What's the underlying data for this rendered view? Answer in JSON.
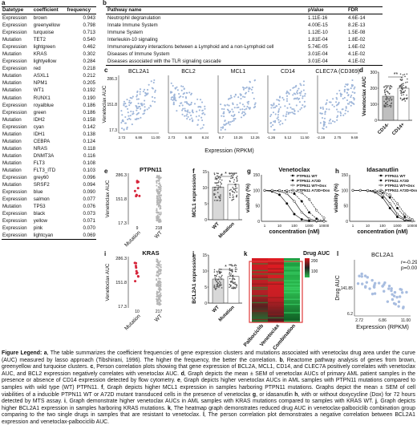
{
  "panel_a": {
    "label": "a",
    "headers": [
      "Datetype",
      "coefficient",
      "frequency"
    ],
    "rows": [
      [
        "Expression",
        "brown",
        "0.943"
      ],
      [
        "Expression",
        "greenyellow",
        "0.798"
      ],
      [
        "Expression",
        "turquoise",
        "0.713"
      ],
      [
        "Mutation",
        "TET2",
        "0.540"
      ],
      [
        "Expression",
        "lightgreen",
        "0.462"
      ],
      [
        "Mutation",
        "KRAS",
        "0.302"
      ],
      [
        "Expression",
        "lightyellow",
        "0.284"
      ],
      [
        "Expression",
        "red",
        "0.218"
      ],
      [
        "Mutation",
        "ASXL1",
        "0.212"
      ],
      [
        "Mutation",
        "NPM1",
        "0.205"
      ],
      [
        "Mutation",
        "WT1",
        "0.192"
      ],
      [
        "Mutation",
        "RUNX1",
        "0.190"
      ],
      [
        "Expression",
        "royalblue",
        "0.186"
      ],
      [
        "Expression",
        "green",
        "0.186"
      ],
      [
        "Mutation",
        "IDH2",
        "0.158"
      ],
      [
        "Expression",
        "cyan",
        "0.142"
      ],
      [
        "Mutation",
        "IDH1",
        "0.138"
      ],
      [
        "Mutation",
        "CEBPA",
        "0.124"
      ],
      [
        "Mutation",
        "NRAS",
        "0.118"
      ],
      [
        "Mutation",
        "DNMT3A",
        "0.116"
      ],
      [
        "Mutation",
        "FLT3",
        "0.108"
      ],
      [
        "Mutation",
        "FLT3_ITD",
        "0.103"
      ],
      [
        "Expression",
        "grey60",
        "0.096"
      ],
      [
        "Mutation",
        "SRSF2",
        "0.094"
      ],
      [
        "Expression",
        "blue",
        "0.090"
      ],
      [
        "Expression",
        "salmon",
        "0.077"
      ],
      [
        "Mutation",
        "TP53",
        "0.076"
      ],
      [
        "Expression",
        "black",
        "0.073"
      ],
      [
        "Expression",
        "yellow",
        "0.071"
      ],
      [
        "Expression",
        "pink",
        "0.070"
      ],
      [
        "Expression",
        "lightcyan",
        "0.069"
      ]
    ]
  },
  "panel_b": {
    "label": "b",
    "headers": [
      "Pathway name",
      "pValue",
      "FDR"
    ],
    "rows": [
      [
        "Neutrophil degranulation",
        "1.11E-16",
        "4.6E-14"
      ],
      [
        "Innate Immune System",
        "4.00E-15",
        "8.2E-13"
      ],
      [
        "Immune System",
        "1.12E-10",
        "1.5E-08"
      ],
      [
        "Interleukin-10 signaling",
        "1.81E-04",
        "1.8E-02"
      ],
      [
        "Immunoregulatory interactions between a Lymphoid and a non-Lymphoid cell",
        "5.74E-05",
        "1.6E-02"
      ],
      [
        "Diseases of Immune System",
        "3.01E-04",
        "4.1E-02"
      ],
      [
        "Diseases associated with the TLR signaling cascade",
        "3.01E-04",
        "4.1E-02"
      ]
    ]
  },
  "panel_c": {
    "label": "c",
    "ylabel": "Venetoclax AUC",
    "xlabel": "Expression (RPKM)",
    "yticks": [
      "286.3",
      "151.8",
      "17.3"
    ],
    "plots": [
      {
        "title": "BCL2A1",
        "xticks": [
          "2.72",
          "6.86",
          "11.00"
        ]
      },
      {
        "title": "BCL2",
        "xticks": [
          "2.73",
          "5.48",
          "8.24"
        ]
      },
      {
        "title": "MCL1",
        "xticks": [
          "8.7",
          "10.26",
          "12.26"
        ]
      },
      {
        "title": "CD14",
        "xticks": [
          "-1.26",
          "5.12",
          "11.50"
        ]
      },
      {
        "title": "CLEC7A (CD369)",
        "xticks": [
          "-2.19",
          "2.75",
          "9.69"
        ]
      }
    ]
  },
  "panel_d": {
    "label": "d",
    "ylabel": "Venetoclax AUC",
    "yticks": [
      "300",
      "200",
      "100",
      "0"
    ],
    "categories": [
      "CD14-",
      "CD14+"
    ],
    "sig": "**"
  },
  "panel_e": {
    "label": "e",
    "title": "PTPN11",
    "ylabel": "Venetoclax AUC",
    "yticks": [
      "286.3",
      "151.8",
      "17.3"
    ],
    "categories": [
      "Mutation",
      "WT"
    ],
    "counts": [
      "9",
      "218"
    ]
  },
  "panel_f": {
    "label": "f",
    "ylabel": "MCL1 expression",
    "yticks": [
      "15",
      "10",
      "5",
      "0"
    ],
    "categories": [
      "WT",
      "Mutation"
    ],
    "sig": "*"
  },
  "panel_g": {
    "label": "g",
    "title": "Venetoclax",
    "ylabel": "viability (%)",
    "xlabel": "concentration (nM)",
    "yticks": [
      "150",
      "100",
      "50",
      "0"
    ],
    "xticks": [
      "1",
      "10",
      "100",
      "1000",
      "10000"
    ],
    "legend": [
      "PTPN11 WT",
      "PTPN11 A72D",
      "PTPN11 WT+Dox",
      "PTPN11 A72D+Dox"
    ]
  },
  "panel_h": {
    "label": "h",
    "title": "Idasanutlin",
    "ylabel": "viability (%)",
    "xlabel": "concentration (nM)",
    "yticks": [
      "150",
      "100",
      "50",
      "0"
    ],
    "xticks": [
      "1",
      "10",
      "100",
      "1000",
      "10000"
    ],
    "legend": [
      "PTPN11 WT",
      "PTPN11 A72D",
      "PTPN11 WT+Dox",
      "PTPN11 A72D+Dox"
    ]
  },
  "panel_i": {
    "label": "i",
    "title": "KRAS",
    "ylabel": "Venetoclax AUC",
    "yticks": [
      "286.3",
      "151.8",
      "17.3"
    ],
    "categories": [
      "Mutation",
      "WT"
    ],
    "counts": [
      "10",
      "217"
    ]
  },
  "panel_j": {
    "label": "j",
    "ylabel": "BCL2A1 expression",
    "yticks": [
      "15",
      "10",
      "5",
      "0"
    ],
    "categories": [
      "WT",
      "Mutation"
    ],
    "sig": "*"
  },
  "panel_k": {
    "label": "k",
    "legend_title": "Drug AUC",
    "legend_ticks": [
      "200",
      "100"
    ],
    "columns": [
      "Palbociclib",
      "Venetoclax",
      "Combination"
    ]
  },
  "panel_l": {
    "label": "l",
    "title": "BCL2A1",
    "ylabel": "Drug AUC",
    "xlabel": "Expression (RPKM)",
    "yticks": [
      "141.85",
      "6.2"
    ],
    "xticks": [
      "2.72",
      "6.86",
      "11.00"
    ],
    "r": "r=-0.29",
    "p": "p=0.003"
  },
  "legend": {
    "title": "Figure Legend:",
    "parts": [
      {
        "b": "a",
        "t": ", The table summarizes the coefficient frequencies of gene expression clusters and mutations associated with venetoclax drug area under the curve (AUC) measured by lasso approach (Tibshirani, 1996). The higher the frequency, the better the correlation. "
      },
      {
        "b": "b",
        "t": ", Reactome pathway analysis of genes from brown, greenyellow and turquoise clusters. "
      },
      {
        "b": "c",
        "t": ", Person correlation plots showing that gene expression of BCL2A, MCL1, CD14, and CLEC7A positively correlates with venetoclax AUC, and BCL2 expression negatively correlates with venetoclax AUC. "
      },
      {
        "b": "d",
        "t": ", Graph depicts the mean ± SEM of venetoclax AUCs of primary AML patient samples in the presence or absence of CD14 expression detected by flow cytometry. "
      },
      {
        "b": "e",
        "t": ", Graph depicts higher venetoclax AUCs in AML samples with PTPN11 mutations compared to samples with wild type (WT) PTPN11. "
      },
      {
        "b": "f",
        "t": ", Graph depicts higher MCL1 expression in samples harboring PTPN11 mutations. Graphs depict the mean ± SEM of cell viabilities of a inducible PTPN11 WT or A72D mutant transduced cells in the presence of venetoclax "
      },
      {
        "b": "g",
        "t": ", or idasanutlin "
      },
      {
        "b": "h",
        "t": ", with or without doxycycline (Dox) for 72 hours detected by MTS assay. "
      },
      {
        "b": "i",
        "t": ", Graph demonstrate higher venetoclax AUCs in AML samples with KRAS mutations compared to samples with KRAS WT. "
      },
      {
        "b": "j",
        "t": ", Graph depicts higher BCL2A1 expression in samples harboring KRAS mutations. "
      },
      {
        "b": "k",
        "t": ", The heatmap graph demonstrates reduced drug AUC in venetoclax-palbociclib combination group comparing to the two single drugs in samples that are resistant to venetoclax. "
      },
      {
        "b": "l",
        "t": ", The person correlation plot demonstrates a negative correlation between BCL2A1 expression and venetoclax-palbociclib AUC."
      }
    ]
  }
}
